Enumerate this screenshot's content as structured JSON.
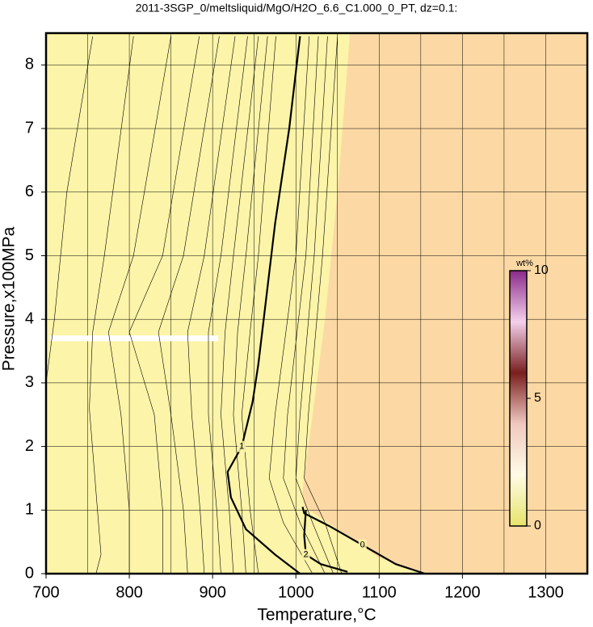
{
  "chart_data": {
    "type": "contour",
    "title": "2011-3SGP_0/meltsliquid/MgO/H2O_6.6_C1.000_0_PT, dz=0.1:",
    "x_label": "Temperature,°C",
    "y_label": "Pressure,x100MPa",
    "xlim": [
      700,
      1350
    ],
    "xticks": [
      700,
      800,
      900,
      1000,
      1100,
      1200,
      1300
    ],
    "xgrid": [
      750,
      850,
      950,
      1050,
      1150,
      1250
    ],
    "ylim": [
      0,
      8.5
    ],
    "yticks": [
      0,
      1,
      2,
      3,
      4,
      5,
      6,
      7,
      8
    ],
    "grid": true,
    "background": "#fcf4a8",
    "fill_regions": [
      {
        "color": "#fcd9a4",
        "x": [
          1065,
          1050,
          1035,
          1015,
          1008,
          1010,
          1050,
          1100,
          1155,
          1350,
          1350
        ],
        "y": [
          8.5,
          6,
          4,
          2,
          1.3,
          1.05,
          0.7,
          0.25,
          0,
          0,
          8.5
        ]
      }
    ],
    "gaps": [
      {
        "color": "#ffffff",
        "x": [
          705,
          907
        ],
        "y": [
          3.7,
          3.7
        ]
      }
    ],
    "contours": [
      {
        "width": 0.6,
        "x": [
          756,
          725,
          710,
          700
        ],
        "y": [
          8.45,
          6,
          4,
          3.0
        ]
      },
      {
        "width": 0.6,
        "x": [
          805,
          770,
          756,
          752,
          766,
          760
        ],
        "y": [
          8.45,
          5,
          3.8,
          2.6,
          0.3,
          0
        ]
      },
      {
        "width": 0.6,
        "x": [
          850,
          805,
          775,
          790,
          800,
          800
        ],
        "y": [
          8.45,
          5,
          3.8,
          2.5,
          1,
          0
        ]
      },
      {
        "width": 0.6,
        "x": [
          884,
          840,
          800,
          830,
          840,
          840
        ],
        "y": [
          8.45,
          5,
          3.8,
          2.5,
          1,
          0
        ]
      },
      {
        "width": 0.6,
        "x": [
          908,
          865,
          835,
          850,
          865,
          870
        ],
        "y": [
          8.45,
          5,
          3.8,
          2.5,
          1,
          0
        ]
      },
      {
        "width": 0.6,
        "x": [
          927,
          890,
          870,
          875,
          885,
          890
        ],
        "y": [
          8.45,
          5,
          3.8,
          2.5,
          1,
          0
        ]
      },
      {
        "width": 0.6,
        "x": [
          942,
          910,
          895,
          895,
          905,
          910
        ],
        "y": [
          8.45,
          5,
          3.8,
          2.5,
          1,
          0
        ]
      },
      {
        "width": 0.6,
        "x": [
          955,
          925,
          915,
          910,
          920,
          925
        ],
        "y": [
          8.45,
          5,
          3.8,
          2.5,
          1,
          0
        ]
      },
      {
        "width": 0.6,
        "x": [
          966,
          940,
          930,
          925,
          935,
          940
        ],
        "y": [
          8.45,
          5,
          3.8,
          2.5,
          1,
          0
        ]
      },
      {
        "width": 0.6,
        "x": [
          976,
          955,
          945,
          935,
          945,
          955
        ],
        "y": [
          8.45,
          5,
          3.8,
          2.5,
          1,
          0
        ]
      },
      {
        "width": 0.6,
        "x": [
          1016,
          1000,
          975,
          968,
          985,
          1020
        ],
        "y": [
          8.45,
          5,
          2.5,
          1.5,
          0.8,
          0
        ]
      },
      {
        "width": 0.6,
        "x": [
          1027,
          1012,
          990,
          985,
          1005,
          1035
        ],
        "y": [
          8.45,
          5,
          2.5,
          1.5,
          0.8,
          0
        ]
      },
      {
        "width": 0.6,
        "x": [
          1038,
          1022,
          1005,
          1000,
          1020,
          1045
        ],
        "y": [
          8.45,
          5,
          2.5,
          1.5,
          0.8,
          0
        ]
      },
      {
        "width": 0.6,
        "x": [
          1050,
          1032,
          1015,
          1010,
          1035,
          1055
        ],
        "y": [
          8.45,
          5,
          2.5,
          1.5,
          0.8,
          0
        ]
      },
      {
        "width": 2.2,
        "level": 1,
        "x": [
          1005,
          992,
          975,
          955,
          948,
          935,
          918,
          922,
          940,
          975,
          1005
        ],
        "y": [
          8.45,
          7,
          5.5,
          3.3,
          2.7,
          2.0,
          1.6,
          1.2,
          0.7,
          0.3,
          0
        ]
      },
      {
        "width": 2.2,
        "level": 2,
        "x": [
          1012,
          1010,
          1012,
          1030,
          1062
        ],
        "y": [
          1.0,
          0.6,
          0.3,
          0.15,
          0.03
        ]
      },
      {
        "width": 2.2,
        "level": 0,
        "x": [
          1008,
          1010,
          1040,
          1080,
          1120,
          1155
        ],
        "y": [
          1.05,
          0.95,
          0.75,
          0.45,
          0.15,
          0
        ]
      }
    ],
    "colorbar": {
      "label": "wt%",
      "lim": [
        0,
        10
      ],
      "ticks": [
        0,
        5,
        10
      ],
      "colors": [
        "#e6e46a",
        "#fffbe6",
        "#f0c8c0",
        "#7a1f1f",
        "#f4d0ec",
        "#8a2a8a"
      ]
    }
  }
}
